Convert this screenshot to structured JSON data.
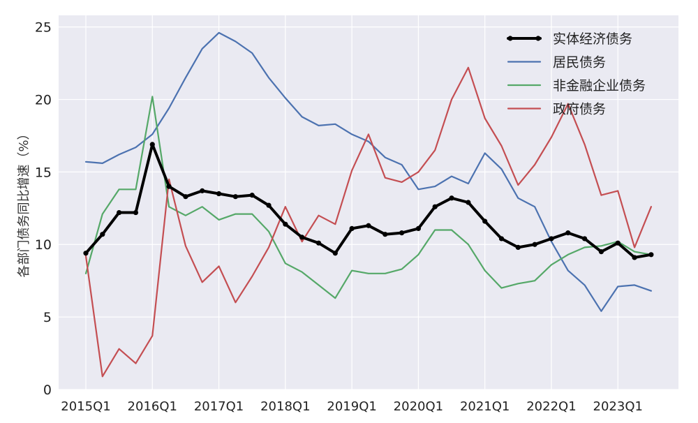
{
  "chart_data": {
    "type": "line",
    "ylabel": "各部门债务同比增速（%）",
    "ylim": [
      0,
      25.8
    ],
    "yticks": [
      0,
      5,
      10,
      15,
      20,
      25
    ],
    "x": [
      "2015Q1",
      "2015Q2",
      "2015Q3",
      "2015Q4",
      "2016Q1",
      "2016Q2",
      "2016Q3",
      "2016Q4",
      "2017Q1",
      "2017Q2",
      "2017Q3",
      "2017Q4",
      "2018Q1",
      "2018Q2",
      "2018Q3",
      "2018Q4",
      "2019Q1",
      "2019Q2",
      "2019Q3",
      "2019Q4",
      "2020Q1",
      "2020Q2",
      "2020Q3",
      "2020Q4",
      "2021Q1",
      "2021Q2",
      "2021Q3",
      "2021Q4",
      "2022Q1",
      "2022Q2",
      "2022Q3",
      "2022Q4",
      "2023Q1",
      "2023Q2",
      "2023Q3"
    ],
    "xtick_labels": [
      "2015Q1",
      "2016Q1",
      "2017Q1",
      "2018Q1",
      "2019Q1",
      "2020Q1",
      "2021Q1",
      "2022Q1",
      "2023Q1"
    ],
    "grid": true,
    "legend_position": "top-right",
    "series": [
      {
        "name": "实体经济债务",
        "color": "#000000",
        "width": 4,
        "markers": true,
        "values": [
          9.4,
          10.7,
          12.2,
          12.2,
          16.9,
          14.0,
          13.3,
          13.7,
          13.5,
          13.3,
          13.4,
          12.7,
          11.4,
          10.5,
          10.1,
          9.4,
          11.1,
          11.3,
          10.7,
          10.8,
          11.1,
          12.6,
          13.2,
          12.9,
          11.6,
          10.4,
          9.8,
          10.0,
          10.4,
          10.8,
          10.4,
          9.5,
          10.1,
          9.1,
          9.3
        ]
      },
      {
        "name": "居民债务",
        "color": "#4c72b0",
        "width": 2.2,
        "markers": false,
        "values": [
          15.7,
          15.6,
          16.2,
          16.7,
          17.6,
          19.4,
          21.5,
          23.5,
          24.6,
          24.0,
          23.2,
          21.5,
          20.1,
          18.8,
          18.2,
          18.3,
          17.6,
          17.1,
          16.0,
          15.5,
          13.8,
          14.0,
          14.7,
          14.2,
          16.3,
          15.2,
          13.2,
          12.6,
          10.2,
          8.2,
          7.2,
          5.4,
          7.1,
          7.2,
          6.8
        ]
      },
      {
        "name": "非金融企业债务",
        "color": "#55a868",
        "width": 2.2,
        "markers": false,
        "values": [
          8.0,
          12.1,
          13.8,
          13.8,
          20.2,
          12.6,
          12.0,
          12.6,
          11.7,
          12.1,
          12.1,
          10.9,
          8.7,
          8.1,
          7.2,
          6.3,
          8.2,
          8.0,
          8.0,
          8.3,
          9.3,
          11.0,
          11.0,
          10.0,
          8.2,
          7.0,
          7.3,
          7.5,
          8.6,
          9.3,
          9.8,
          9.9,
          10.2,
          9.5,
          9.3
        ]
      },
      {
        "name": "政府债务",
        "color": "#c44e52",
        "width": 2.2,
        "markers": false,
        "values": [
          9.2,
          0.9,
          2.8,
          1.8,
          3.7,
          14.5,
          9.9,
          7.4,
          8.5,
          6.0,
          7.8,
          9.8,
          12.6,
          10.2,
          12.0,
          11.4,
          15.1,
          17.6,
          14.6,
          14.3,
          15.0,
          16.5,
          20.0,
          22.2,
          18.7,
          16.8,
          14.1,
          15.5,
          17.4,
          19.7,
          16.9,
          13.4,
          13.7,
          9.8,
          12.6
        ]
      }
    ]
  }
}
